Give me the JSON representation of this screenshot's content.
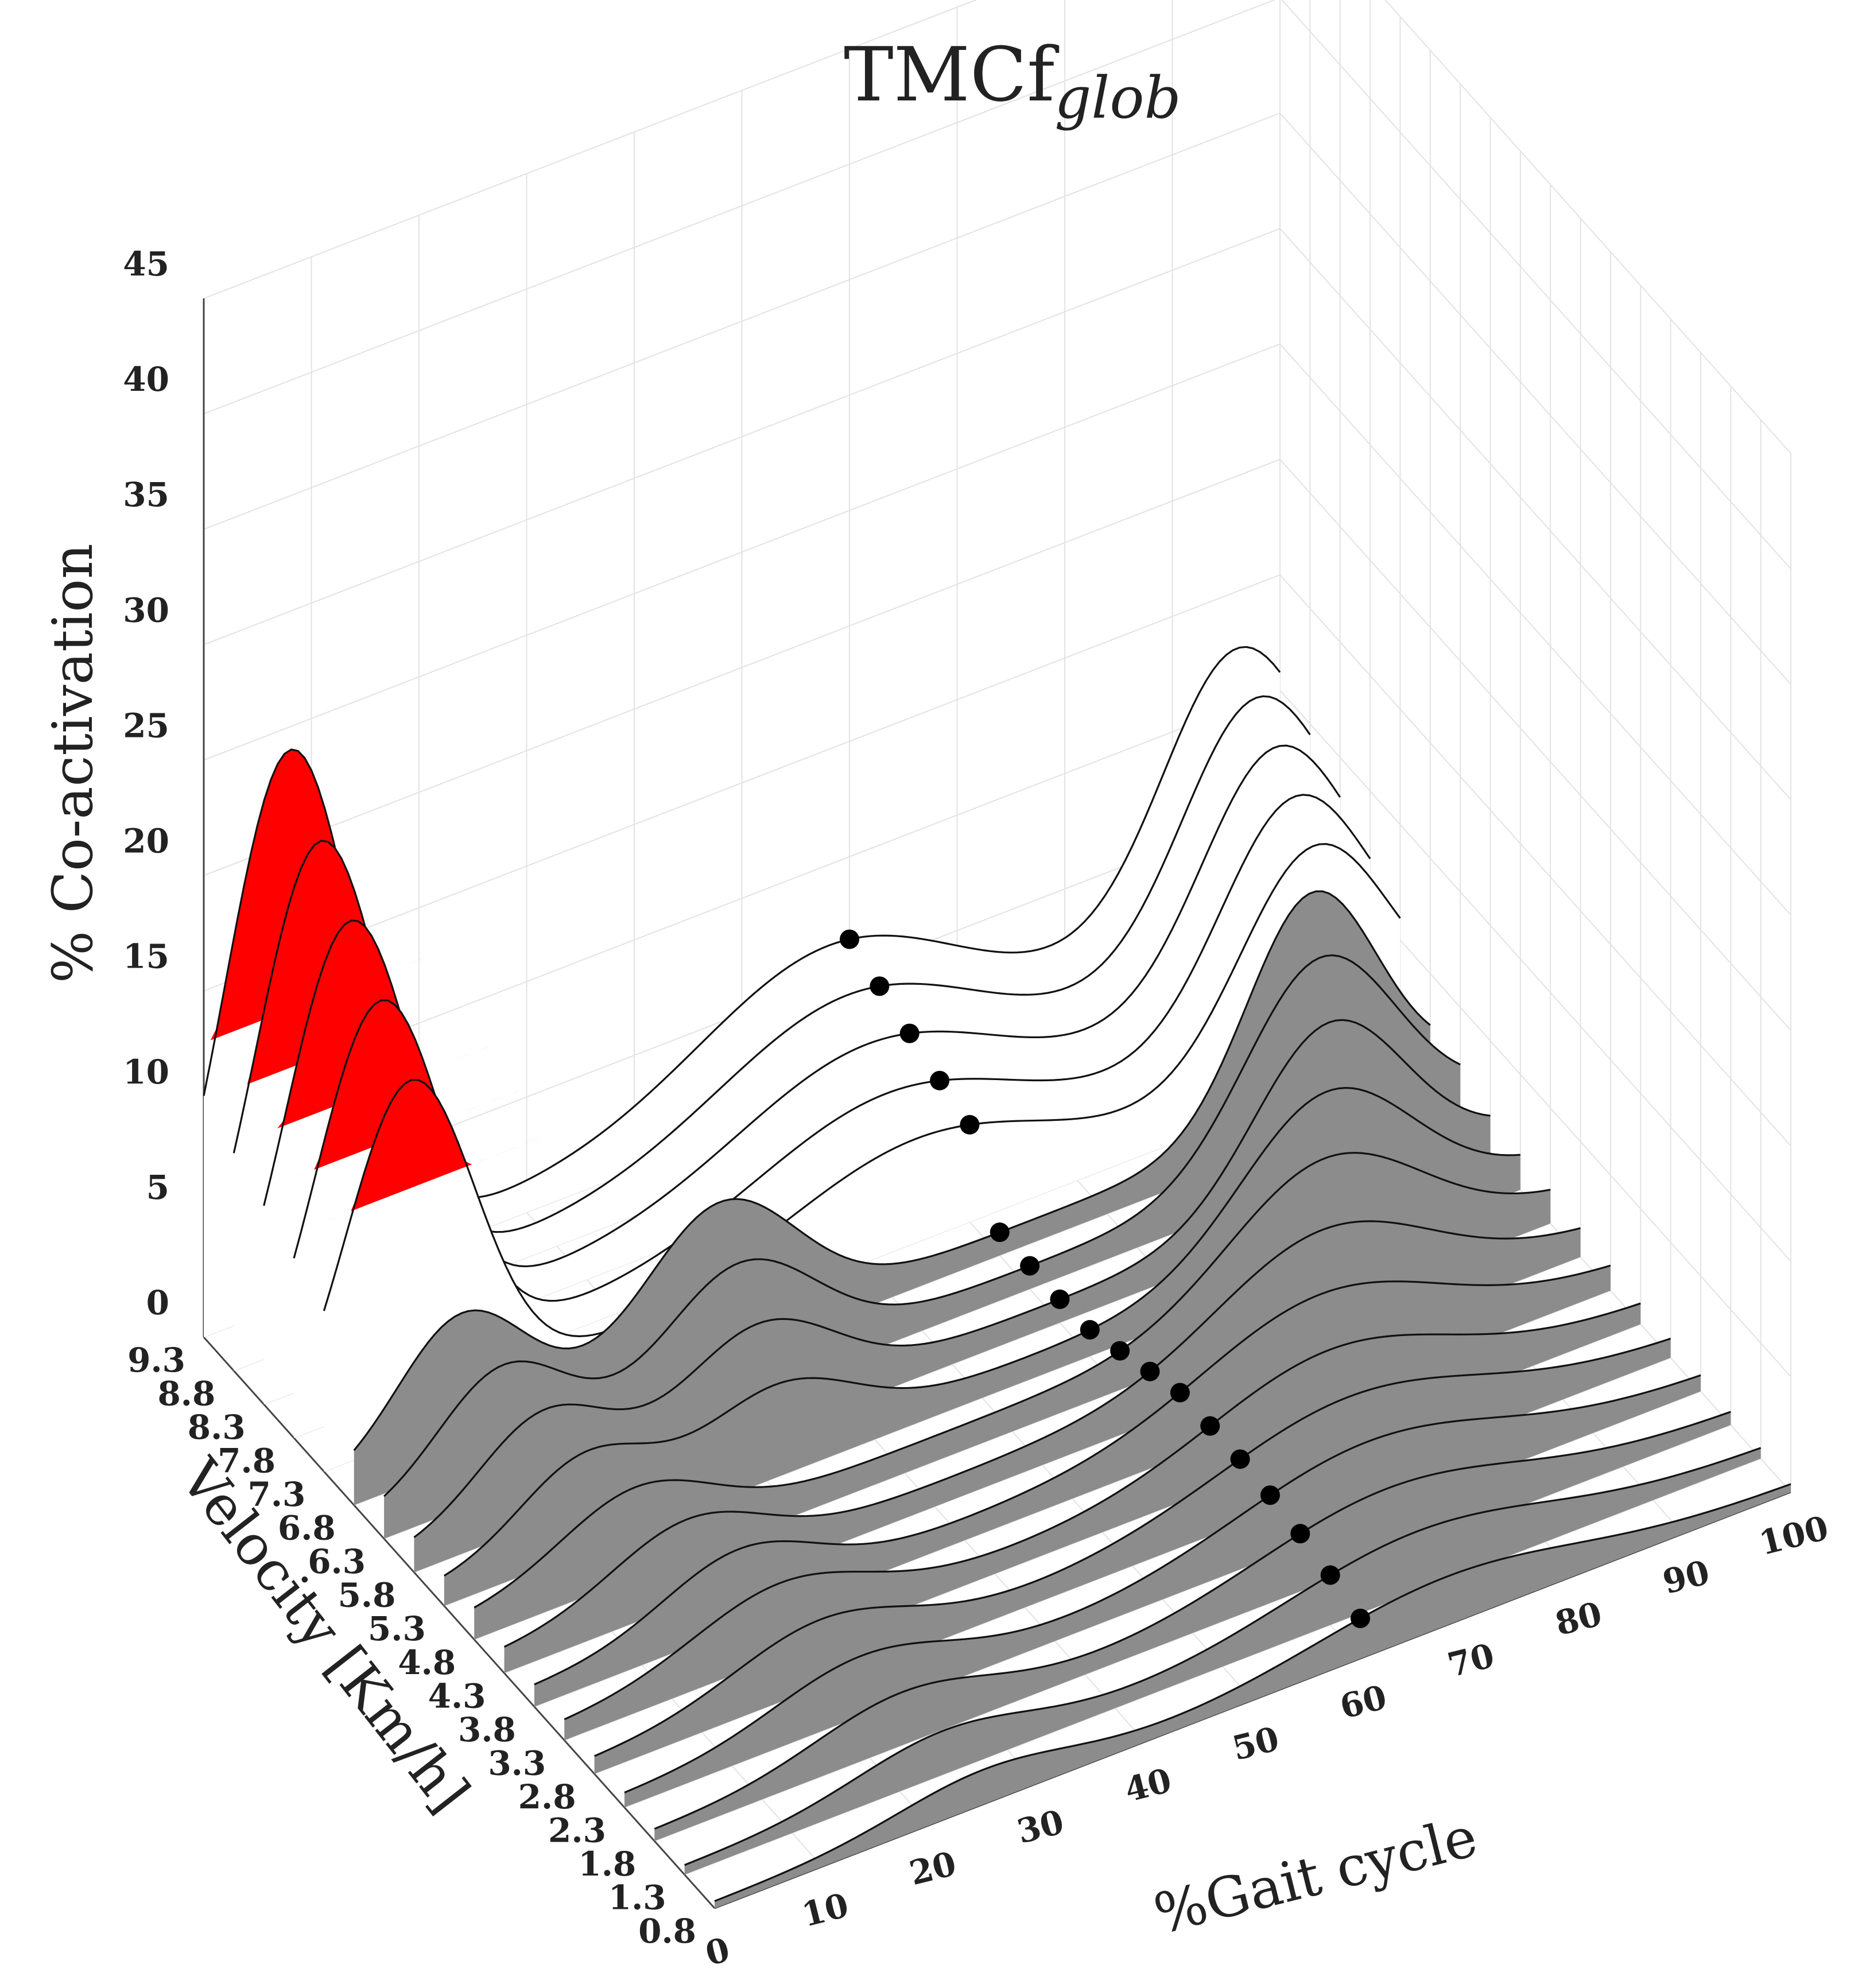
{
  "chart_data": {
    "type": "waterfall-3d",
    "title": "TMCf",
    "title_subscript": "glob",
    "xlabel": "%Gait cycle",
    "ylabel": "Velocity [Km/h]",
    "zlabel": "% Co-activation",
    "x_ticks": [
      "0",
      "10",
      "20",
      "30",
      "40",
      "50",
      "60",
      "70",
      "80",
      "90",
      "100"
    ],
    "y_ticks": [
      "0.8",
      "1.3",
      "1.8",
      "2.3",
      "2.8",
      "3.3",
      "3.8",
      "4.3",
      "4.8",
      "5.3",
      "5.8",
      "6.3",
      "6.8",
      "7.3",
      "7.8",
      "8.3",
      "8.8",
      "9.3"
    ],
    "z_ticks": [
      "0",
      "5",
      "10",
      "15",
      "20",
      "25",
      "30",
      "35",
      "40",
      "45"
    ],
    "xlim": [
      0,
      100
    ],
    "ylim": [
      0.8,
      9.3
    ],
    "zlim": [
      0,
      45
    ],
    "grid": true,
    "colors": {
      "high_peak": "#ff0000",
      "low_fill": "#808080",
      "curve": "#111111",
      "marker": "#000000"
    },
    "series": [
      {
        "velocity": 0.8,
        "baseline": 0.3,
        "peaks": [
          [
            25,
            1.2,
            8
          ],
          [
            68,
            1.8,
            12
          ]
        ],
        "marker_x": 60
      },
      {
        "velocity": 1.3,
        "baseline": 0.4,
        "peaks": [
          [
            24,
            1.5,
            8
          ],
          [
            68,
            2.2,
            12
          ]
        ],
        "marker_x": 60
      },
      {
        "velocity": 1.8,
        "baseline": 0.5,
        "peaks": [
          [
            23,
            1.8,
            8
          ],
          [
            68,
            2.5,
            12
          ]
        ],
        "marker_x": 60
      },
      {
        "velocity": 2.3,
        "baseline": 0.6,
        "peaks": [
          [
            22,
            2.0,
            8
          ],
          [
            69,
            2.8,
            12
          ]
        ],
        "marker_x": 60
      },
      {
        "velocity": 2.8,
        "baseline": 0.7,
        "peaks": [
          [
            21,
            2.2,
            8
          ],
          [
            70,
            3.0,
            12
          ]
        ],
        "marker_x": 60
      },
      {
        "velocity": 3.3,
        "baseline": 0.8,
        "peaks": [
          [
            20,
            2.4,
            8
          ],
          [
            71,
            3.3,
            11
          ]
        ],
        "marker_x": 60
      },
      {
        "velocity": 3.8,
        "baseline": 0.9,
        "peaks": [
          [
            19,
            2.5,
            7
          ],
          [
            73,
            3.8,
            11
          ]
        ],
        "marker_x": 60
      },
      {
        "velocity": 4.3,
        "baseline": 1.0,
        "peaks": [
          [
            17,
            2.6,
            7
          ],
          [
            76,
            4.5,
            10
          ]
        ],
        "marker_x": 60
      },
      {
        "velocity": 4.8,
        "baseline": 1.1,
        "peaks": [
          [
            15,
            2.8,
            7
          ],
          [
            79,
            5.5,
            9
          ]
        ],
        "marker_x": 60
      },
      {
        "velocity": 5.3,
        "baseline": 1.0,
        "peaks": [
          [
            13,
            3.2,
            6
          ],
          [
            31,
            3.0,
            7
          ],
          [
            82,
            6.5,
            8
          ]
        ],
        "marker_x": 60
      },
      {
        "velocity": 5.8,
        "baseline": 1.0,
        "peaks": [
          [
            12,
            3.8,
            6
          ],
          [
            32,
            4.0,
            7
          ],
          [
            85,
            7.5,
            7
          ]
        ],
        "marker_x": 60
      },
      {
        "velocity": 6.3,
        "baseline": 1.0,
        "peaks": [
          [
            11,
            4.5,
            6
          ],
          [
            33,
            5.0,
            7
          ],
          [
            87,
            8.5,
            7
          ]
        ],
        "marker_x": 60
      },
      {
        "velocity": 6.8,
        "baseline": 1.0,
        "peaks": [
          [
            10,
            5.5,
            6
          ],
          [
            34,
            6.0,
            7
          ],
          [
            89,
            9.5,
            6
          ]
        ],
        "marker_x": 60
      },
      {
        "velocity": 7.3,
        "baseline": 1.0,
        "peaks": [
          [
            8,
            14.5,
            6
          ],
          [
            55,
            3.5,
            12
          ],
          [
            92,
            9.5,
            7
          ]
        ],
        "marker_x": 60
      },
      {
        "velocity": 7.8,
        "baseline": 1.0,
        "peaks": [
          [
            8,
            16.5,
            6
          ],
          [
            55,
            4.0,
            12
          ],
          [
            93,
            10.0,
            7
          ]
        ],
        "marker_x": 60
      },
      {
        "velocity": 8.3,
        "baseline": 1.0,
        "peaks": [
          [
            8,
            18.5,
            6
          ],
          [
            56,
            4.5,
            12
          ],
          [
            94,
            10.5,
            7
          ]
        ],
        "marker_x": 60
      },
      {
        "velocity": 8.8,
        "baseline": 1.0,
        "peaks": [
          [
            8,
            20.5,
            6
          ],
          [
            57,
            5.0,
            12
          ],
          [
            95,
            11.0,
            7
          ]
        ],
        "marker_x": 60
      },
      {
        "velocity": 9.3,
        "baseline": 1.0,
        "peaks": [
          [
            8,
            23.0,
            6
          ],
          [
            58,
            5.5,
            12
          ],
          [
            96,
            11.5,
            7
          ]
        ],
        "marker_x": 60
      }
    ]
  }
}
